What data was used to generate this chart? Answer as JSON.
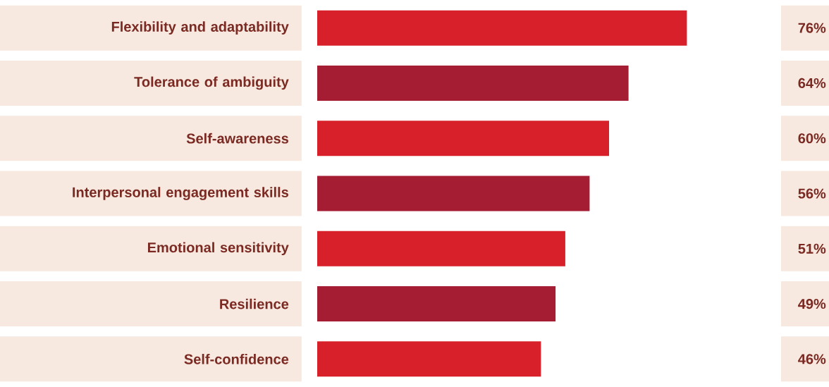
{
  "chart_data": {
    "type": "bar",
    "orientation": "horizontal",
    "categories": [
      "Flexibility and adaptability",
      "Tolerance of ambiguity",
      "Self-awareness",
      "Interpersonal engagement skills",
      "Emotional sensitivity",
      "Resilience",
      "Self-confidence"
    ],
    "values": [
      76,
      64,
      60,
      56,
      51,
      49,
      46
    ],
    "colors": [
      "#d7202a",
      "#a51d33",
      "#d7202a",
      "#a51d33",
      "#d7202a",
      "#a51d33",
      "#d7202a"
    ],
    "value_labels": [
      "76%",
      "64%",
      "60%",
      "56%",
      "51%",
      "49%",
      "46%"
    ]
  }
}
